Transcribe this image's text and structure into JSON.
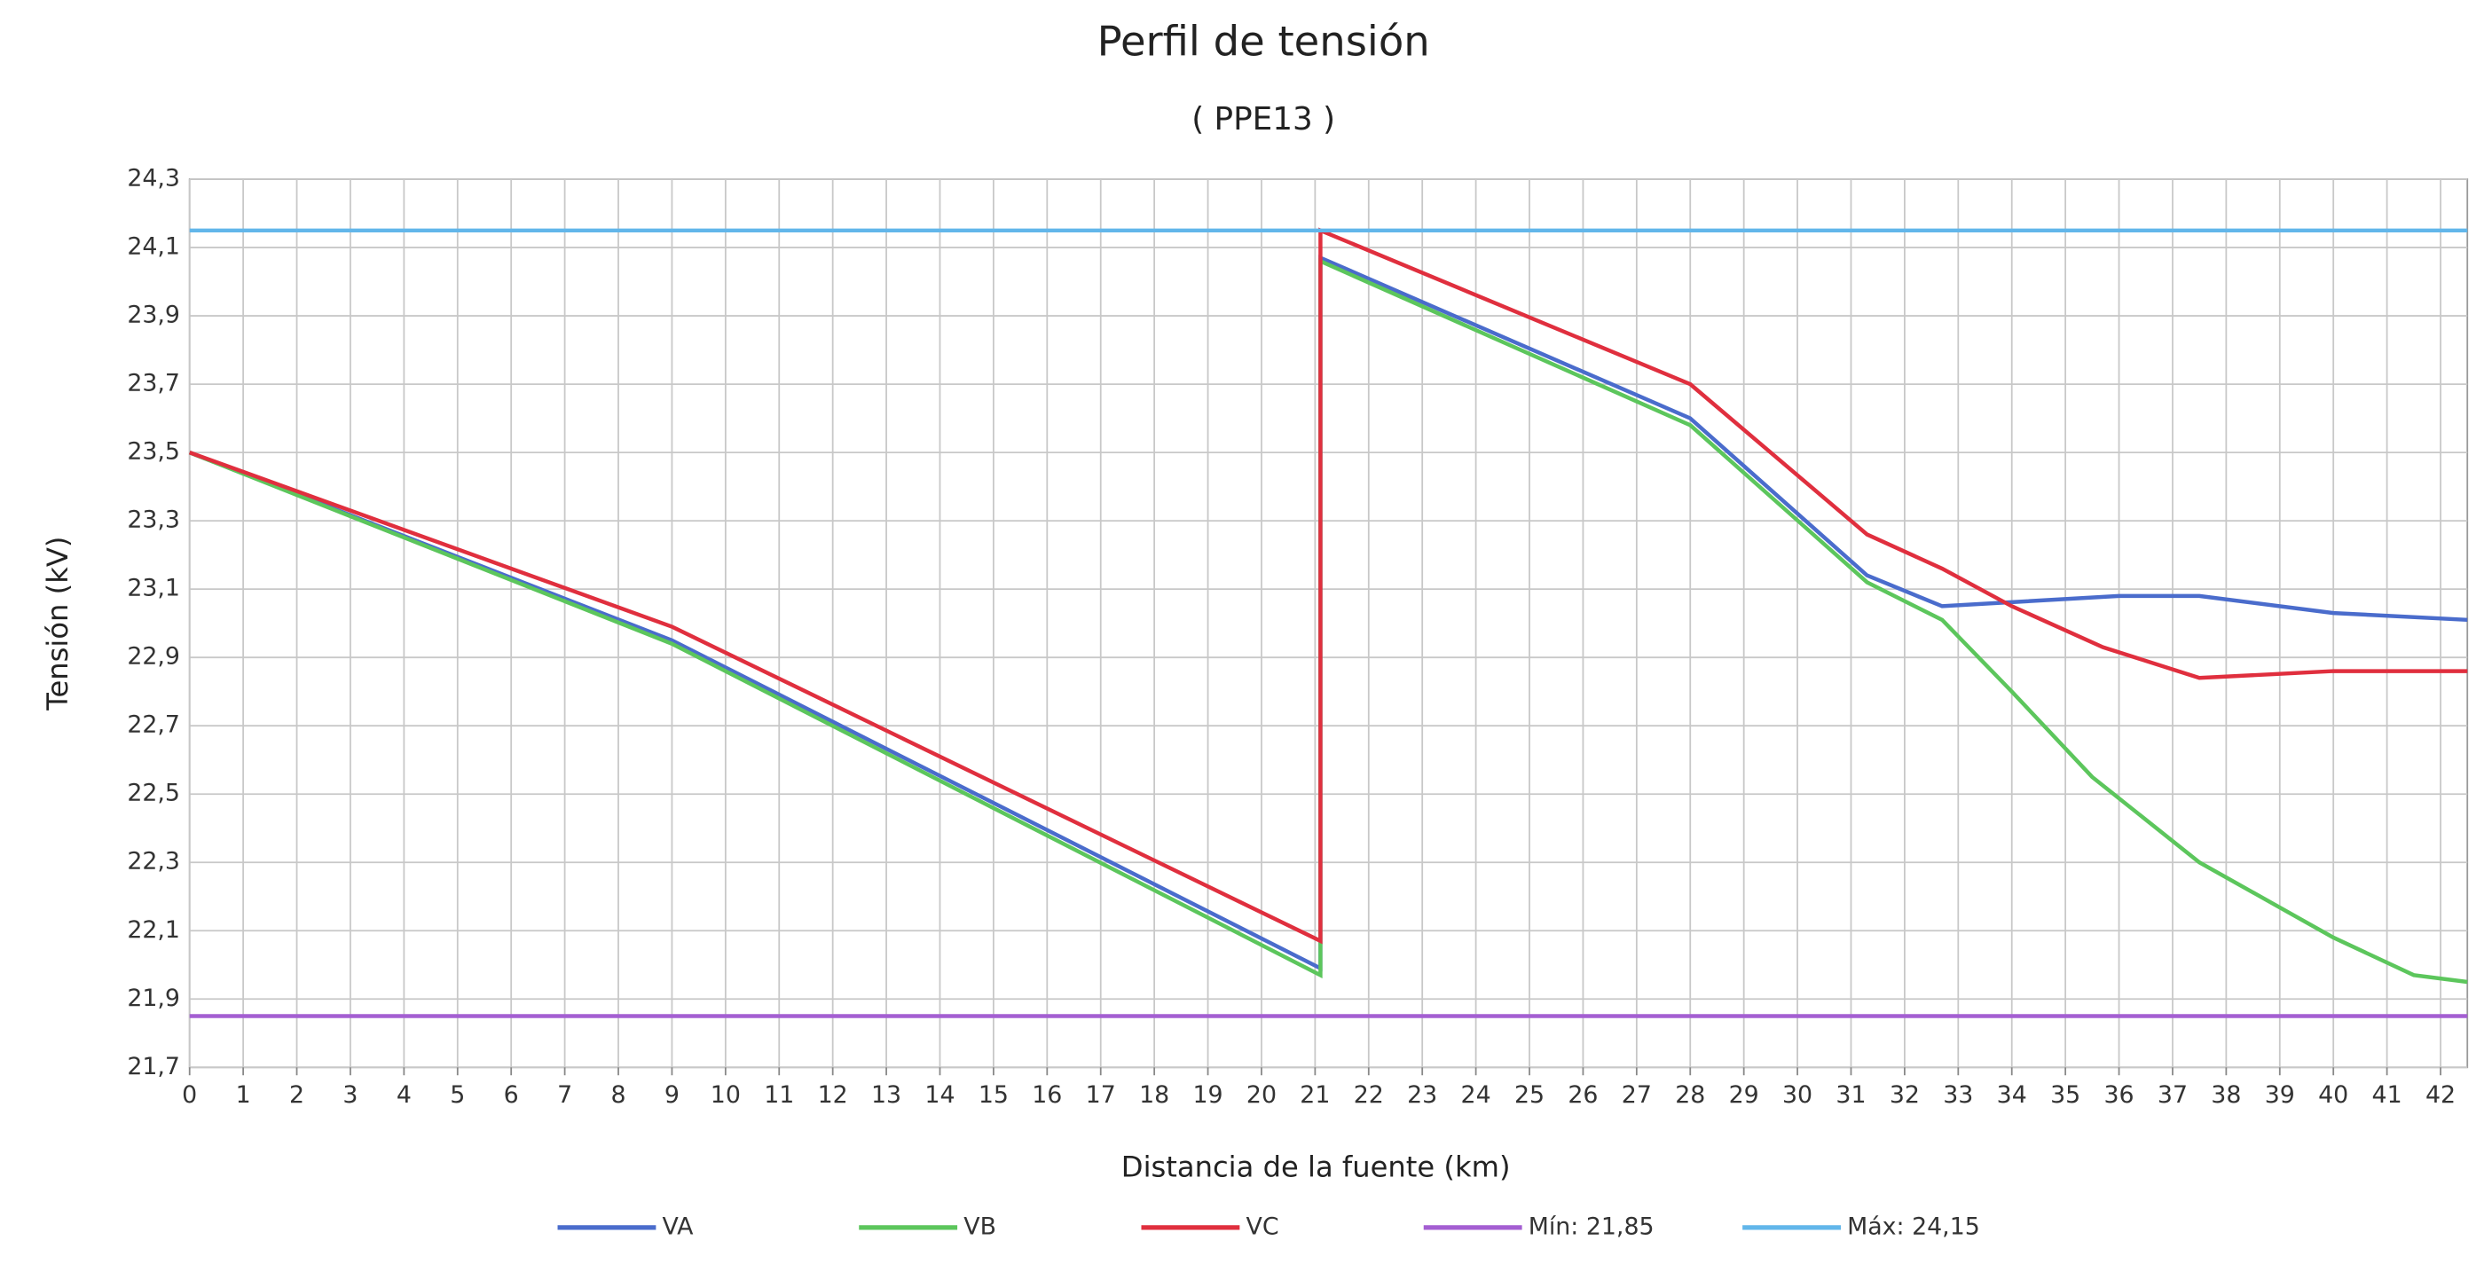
{
  "chart_data": {
    "type": "line",
    "title": "Perfil de tensión",
    "subtitle": "( PPE13 )",
    "x_label": "Distancia de la fuente (km)",
    "y_label": "Tensión (kV)",
    "xlim": [
      0,
      42.5
    ],
    "ylim": [
      21.7,
      24.3
    ],
    "xticks": [
      0,
      1,
      2,
      3,
      4,
      5,
      6,
      7,
      8,
      9,
      10,
      11,
      12,
      13,
      14,
      15,
      16,
      17,
      18,
      19,
      20,
      21,
      22,
      23,
      24,
      25,
      26,
      27,
      28,
      29,
      30,
      31,
      32,
      33,
      34,
      35,
      36,
      37,
      38,
      39,
      40,
      41,
      42
    ],
    "yticks": [
      {
        "value": 21.7,
        "label": "21,7"
      },
      {
        "value": 21.9,
        "label": "21,9"
      },
      {
        "value": 22.1,
        "label": "22,1"
      },
      {
        "value": 22.3,
        "label": "22,3"
      },
      {
        "value": 22.5,
        "label": "22,5"
      },
      {
        "value": 22.7,
        "label": "22,7"
      },
      {
        "value": 22.9,
        "label": "22,9"
      },
      {
        "value": 23.1,
        "label": "23,1"
      },
      {
        "value": 23.3,
        "label": "23,3"
      },
      {
        "value": 23.5,
        "label": "23,5"
      },
      {
        "value": 23.7,
        "label": "23,7"
      },
      {
        "value": 23.9,
        "label": "23,9"
      },
      {
        "value": 24.1,
        "label": "24,1"
      },
      {
        "value": 24.3,
        "label": "24,3"
      }
    ],
    "grid": true,
    "legend": "bottom",
    "series": [
      {
        "name": "VA",
        "color": "#4a6ccc",
        "x": [
          0,
          9,
          21.1,
          21.1,
          28,
          31.3,
          32.7,
          36,
          37.5,
          40,
          42.5
        ],
        "values": [
          23.5,
          22.95,
          21.99,
          24.07,
          23.6,
          23.14,
          23.05,
          23.08,
          23.08,
          23.03,
          23.01
        ]
      },
      {
        "name": "VB",
        "color": "#5cc65c",
        "x": [
          0,
          9,
          21.1,
          21.1,
          28,
          31.3,
          32.7,
          34,
          35.5,
          37.5,
          40,
          41.5,
          42.5
        ],
        "values": [
          23.5,
          22.94,
          21.97,
          24.06,
          23.58,
          23.12,
          23.01,
          22.8,
          22.55,
          22.3,
          22.08,
          21.97,
          21.95
        ]
      },
      {
        "name": "VC",
        "color": "#e02f3e",
        "x": [
          0,
          9,
          21.1,
          21.1,
          28,
          31.3,
          32.7,
          34,
          35.7,
          37.5,
          40,
          42.5
        ],
        "values": [
          23.5,
          22.99,
          22.07,
          24.15,
          23.7,
          23.26,
          23.16,
          23.05,
          22.93,
          22.84,
          22.86,
          22.86
        ]
      },
      {
        "name": "Mín: 21,85",
        "color": "#a45fd2",
        "x": [
          0,
          42.5
        ],
        "values": [
          21.85,
          21.85
        ]
      },
      {
        "name": "Máx: 24,15",
        "color": "#62b6ea",
        "x": [
          0,
          42.5
        ],
        "values": [
          24.15,
          24.15
        ]
      }
    ]
  }
}
